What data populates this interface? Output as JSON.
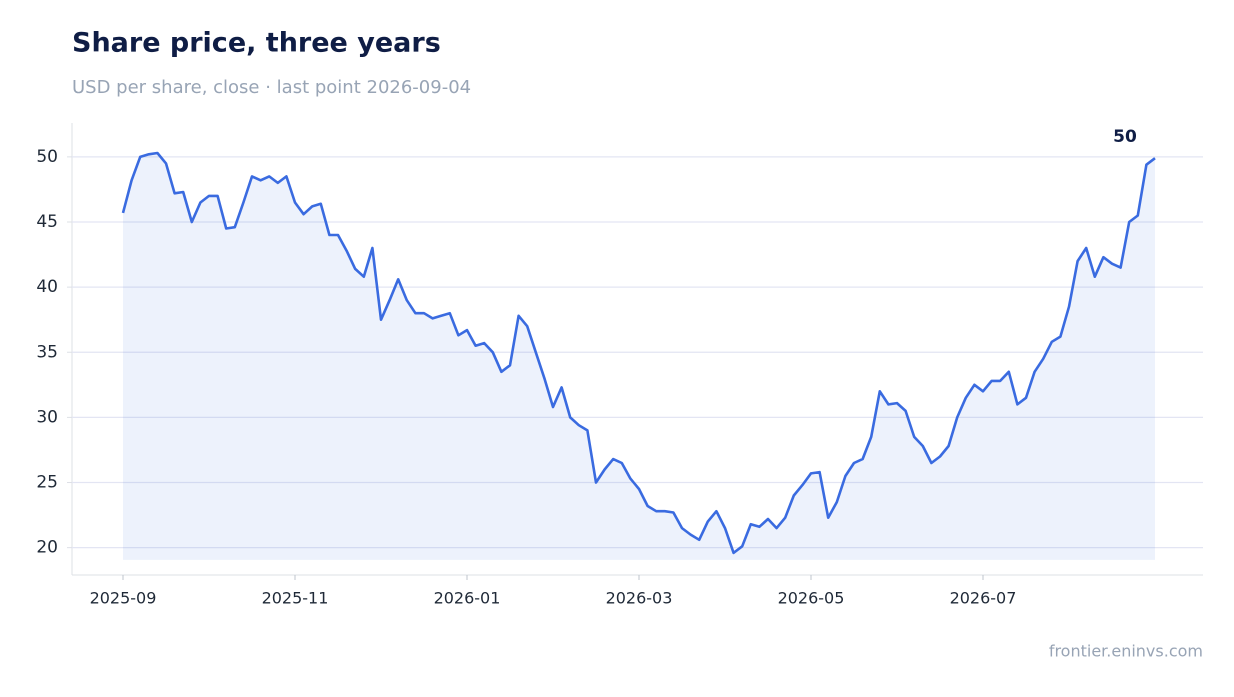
{
  "chart_data": {
    "type": "line",
    "title": "Share price, three years",
    "subtitle": "USD per share, close · last point 2026-09-04",
    "source": "frontier.eninvs.com",
    "categories": [
      "2025-09",
      null,
      null,
      null,
      null,
      null,
      null,
      null,
      null,
      null,
      null,
      null,
      null,
      null,
      null,
      null,
      null,
      null,
      null,
      null,
      "2025-11",
      null,
      null,
      null,
      null,
      null,
      null,
      null,
      null,
      null,
      null,
      null,
      null,
      null,
      null,
      null,
      null,
      null,
      null,
      null,
      "2026-01",
      null,
      null,
      null,
      null,
      null,
      null,
      null,
      null,
      null,
      null,
      null,
      null,
      null,
      null,
      null,
      null,
      null,
      null,
      null,
      "2026-03",
      null,
      null,
      null,
      null,
      null,
      null,
      null,
      null,
      null,
      null,
      null,
      null,
      null,
      null,
      null,
      null,
      null,
      null,
      null,
      "2026-05",
      null,
      null,
      null,
      null,
      null,
      null,
      null,
      null,
      null,
      null,
      null,
      null,
      null,
      null,
      null,
      null,
      null,
      null,
      null,
      "2026-07",
      null,
      null,
      null,
      null,
      null,
      null,
      null,
      null,
      null,
      null,
      null,
      null,
      null,
      null,
      null,
      null,
      null,
      null,
      null,
      null
    ],
    "series": [
      {
        "color": "#3a6be0",
        "values": [
          45.7,
          48.2,
          50.0,
          50.2,
          50.3,
          49.5,
          47.2,
          47.3,
          45.0,
          46.5,
          47.0,
          47.0,
          44.5,
          44.6,
          46.5,
          48.5,
          48.2,
          48.5,
          48.0,
          48.5,
          46.5,
          45.6,
          46.2,
          46.4,
          44.0,
          44.0,
          42.8,
          41.4,
          40.8,
          43.0,
          37.5,
          39.0,
          40.6,
          39.0,
          38.0,
          38.0,
          37.6,
          37.8,
          38.0,
          36.3,
          36.7,
          35.5,
          35.7,
          35.0,
          33.5,
          34.0,
          37.8,
          37.0,
          35.0,
          33.0,
          30.8,
          32.3,
          30.0,
          29.4,
          29.0,
          25.0,
          26.0,
          26.8,
          26.5,
          25.3,
          24.5,
          23.2,
          22.8,
          22.8,
          22.7,
          21.5,
          21.0,
          20.6,
          22.0,
          22.8,
          21.5,
          19.6,
          20.1,
          21.8,
          21.6,
          22.2,
          21.5,
          22.3,
          24.0,
          24.8,
          25.7,
          25.8,
          22.3,
          23.5,
          25.5,
          26.5,
          26.8,
          28.5,
          32.0,
          31.0,
          31.1,
          30.5,
          28.5,
          27.8,
          26.5,
          27.0,
          27.8,
          30.0,
          31.5,
          32.5,
          32.0,
          32.8,
          32.8,
          33.5,
          31.0,
          31.5,
          33.5,
          34.5,
          35.8,
          36.2,
          38.5,
          42.0,
          43.0,
          40.8,
          42.3,
          41.8,
          41.5,
          45.0,
          45.5,
          49.4,
          49.9
        ],
        "value_labels": [
          null,
          null,
          null,
          null,
          null,
          null,
          null,
          null,
          null,
          null,
          null,
          null,
          null,
          null,
          null,
          null,
          null,
          null,
          null,
          null,
          null,
          null,
          null,
          null,
          null,
          null,
          null,
          null,
          null,
          null,
          null,
          null,
          null,
          null,
          null,
          null,
          null,
          null,
          null,
          null,
          null,
          null,
          null,
          null,
          null,
          null,
          null,
          null,
          null,
          null,
          null,
          null,
          null,
          null,
          null,
          null,
          null,
          null,
          null,
          null,
          null,
          null,
          null,
          null,
          null,
          null,
          null,
          null,
          null,
          null,
          null,
          null,
          null,
          null,
          null,
          null,
          null,
          null,
          null,
          null,
          null,
          null,
          null,
          null,
          null,
          null,
          null,
          null,
          null,
          null,
          null,
          null,
          null,
          null,
          null,
          null,
          null,
          null,
          null,
          null,
          null,
          null,
          null,
          null,
          null,
          null,
          null,
          null,
          null,
          null,
          null,
          null,
          null,
          null,
          null,
          null,
          null,
          null,
          null,
          null,
          "50"
        ]
      }
    ],
    "ylim": [
      17.9,
      52.6
    ],
    "yticks": [
      20,
      25,
      30,
      35,
      40,
      45,
      50
    ],
    "grid": true,
    "area": true
  }
}
